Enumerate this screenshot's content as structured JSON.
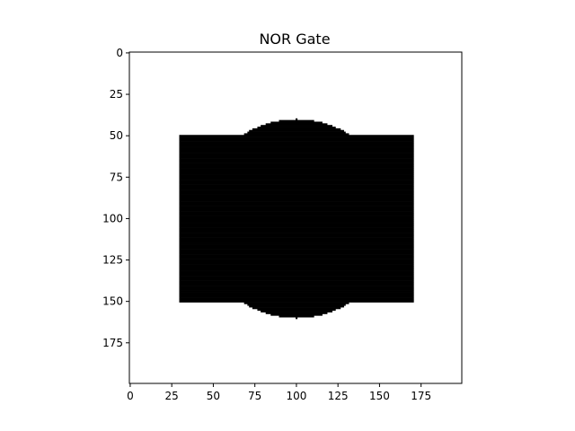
{
  "chart_data": {
    "type": "heatmap",
    "title": "NOR Gate",
    "xlabel": "",
    "ylabel": "",
    "image_size": [
      200,
      200
    ],
    "xlim": [
      0,
      199
    ],
    "ylim": [
      199,
      0
    ],
    "x_ticks": [
      0,
      25,
      50,
      75,
      100,
      125,
      150,
      175
    ],
    "y_ticks": [
      0,
      25,
      50,
      75,
      100,
      125,
      150,
      175
    ],
    "colormap": {
      "0": "#ffffff",
      "1": "#000000"
    },
    "shapes": [
      {
        "kind": "rectangle",
        "x_range": [
          30,
          170
        ],
        "y_range": [
          50,
          150
        ],
        "value": 1
      },
      {
        "kind": "circle",
        "center": [
          100,
          100
        ],
        "radius": 60,
        "value": 1,
        "note": "disc clipped to visible band y 40–160"
      }
    ],
    "grid": false,
    "legend": false
  }
}
